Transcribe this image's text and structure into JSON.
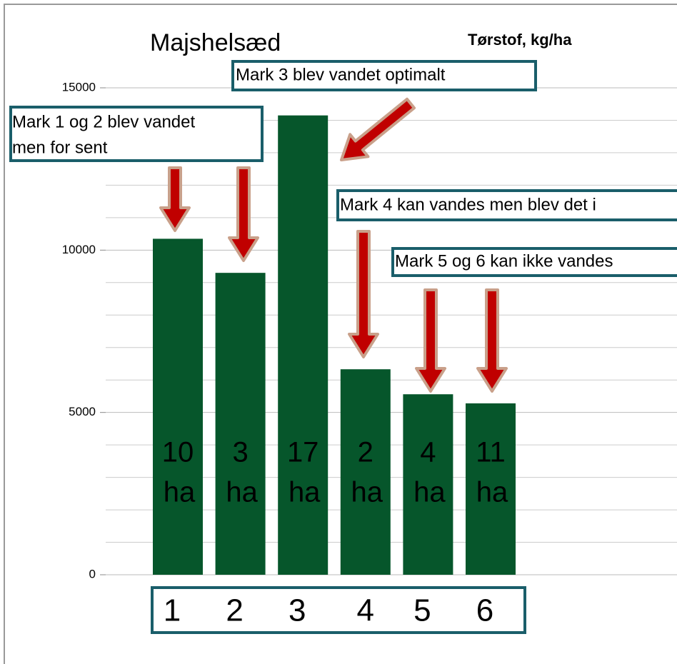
{
  "chart_data": {
    "type": "bar",
    "title": "Majshelsæd",
    "subtitle": "Tørstof, kg/ha",
    "categories": [
      "1",
      "2",
      "3",
      "4",
      "5",
      "6"
    ],
    "values": [
      10350,
      9300,
      14150,
      6330,
      5560,
      5280
    ],
    "bar_labels": [
      [
        "10",
        "ha"
      ],
      [
        "3",
        "ha"
      ],
      [
        "17",
        "ha"
      ],
      [
        "2",
        "ha"
      ],
      [
        "4",
        "ha"
      ],
      [
        "11",
        "ha"
      ]
    ],
    "color": "#06562b",
    "ylim": [
      0,
      15000
    ],
    "yticks": [
      0,
      5000,
      10000,
      15000
    ],
    "yminorticks": [
      1000,
      2000,
      3000,
      4000,
      6000,
      7000,
      8000,
      9000,
      11000,
      12000,
      13000,
      14000
    ],
    "grid": true,
    "annotations": [
      [
        "Mark 1 og 2 blev vandet",
        "men for sent"
      ],
      [
        "Mark 3 blev vandet optimalt"
      ],
      [
        "Mark 4 kan vandes men blev det i"
      ],
      [
        "Mark 5 og 6 kan ikke vandes"
      ]
    ]
  }
}
